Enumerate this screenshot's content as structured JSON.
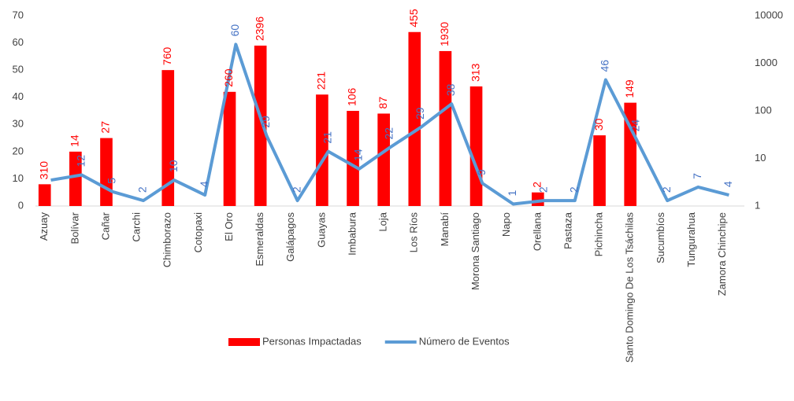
{
  "chart_data": {
    "type": "bar-line",
    "categories": [
      "Azuay",
      "Bolívar",
      "Cañar",
      "Carchi",
      "Chimborazo",
      "Cotopaxi",
      "El Oro",
      "Esmeraldas",
      "Galápagos",
      "Guayas",
      "Imbabura",
      "Loja",
      "Los Ríos",
      "Manabí",
      "Morona Santiago",
      "Napo",
      "Orellana",
      "Pastaza",
      "Pichincha",
      "Santo Domingo De Los Tsáchilas",
      "Sucumbíos",
      "Tungurahua",
      "Zamora Chinchipe"
    ],
    "series": [
      {
        "name": "Personas Impactadas",
        "color": "#ff0000",
        "type": "bar",
        "values": [
          8,
          20,
          25,
          0,
          50,
          0,
          42,
          59,
          0,
          41,
          35,
          34,
          64,
          57,
          44,
          0,
          5,
          0,
          26,
          38,
          0,
          0,
          0
        ]
      },
      {
        "name": "Número de Eventos",
        "color": "#5b9bd5",
        "type": "line",
        "axis": "y2",
        "values": [
          3.5,
          4.5,
          2,
          1.3,
          3.5,
          1.7,
          2500,
          30,
          1.3,
          14,
          6,
          17,
          45,
          140,
          3,
          1.1,
          1.3,
          1.3,
          450,
          25,
          1.3,
          2.5,
          1.7
        ]
      }
    ],
    "label_sets": [
      {
        "color": "#ff0000",
        "labels": [
          310,
          14,
          27,
          null,
          760,
          null,
          260,
          2396,
          null,
          221,
          106,
          87,
          455,
          1930,
          313,
          null,
          2,
          null,
          30,
          149,
          null,
          null,
          null
        ]
      },
      {
        "color": "#4472c4",
        "labels": [
          null,
          12,
          5,
          2,
          10,
          4,
          60,
          29,
          2,
          21,
          14,
          22,
          29,
          38,
          9,
          1,
          2,
          2,
          46,
          24,
          2,
          7,
          4
        ]
      }
    ],
    "ylim": [
      0,
      70
    ],
    "yticks": [
      0,
      10,
      20,
      30,
      40,
      50,
      60,
      70
    ],
    "y2lim": [
      1,
      10000
    ],
    "y2ticks": [
      1,
      10,
      100,
      1000,
      10000
    ],
    "y2log": true,
    "grid": false,
    "legend": "bottom"
  }
}
